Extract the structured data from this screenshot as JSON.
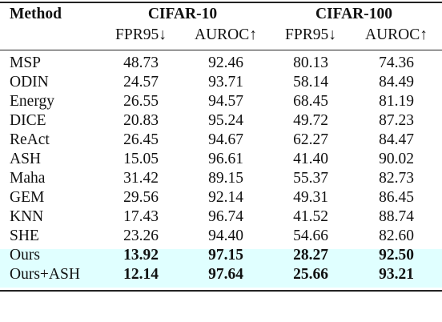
{
  "table": {
    "header": {
      "method": "Method",
      "groups": [
        "CIFAR-10",
        "CIFAR-100"
      ],
      "metrics": [
        "FPR95↓",
        "AUROC↑",
        "FPR95↓",
        "AUROC↑"
      ]
    },
    "rows": [
      {
        "method": "MSP",
        "values": [
          "48.73",
          "92.46",
          "80.13",
          "74.36"
        ]
      },
      {
        "method": "ODIN",
        "values": [
          "24.57",
          "93.71",
          "58.14",
          "84.49"
        ]
      },
      {
        "method": "Energy",
        "values": [
          "26.55",
          "94.57",
          "68.45",
          "81.19"
        ]
      },
      {
        "method": "DICE",
        "values": [
          "20.83",
          "95.24",
          "49.72",
          "87.23"
        ]
      },
      {
        "method": "ReAct",
        "values": [
          "26.45",
          "94.67",
          "62.27",
          "84.47"
        ]
      },
      {
        "method": "ASH",
        "values": [
          "15.05",
          "96.61",
          "41.40",
          "90.02"
        ]
      },
      {
        "method": "Maha",
        "values": [
          "31.42",
          "89.15",
          "55.37",
          "82.73"
        ]
      },
      {
        "method": "GEM",
        "values": [
          "29.56",
          "92.14",
          "49.31",
          "86.45"
        ]
      },
      {
        "method": "KNN",
        "values": [
          "17.43",
          "96.74",
          "41.52",
          "88.74"
        ]
      },
      {
        "method": "SHE",
        "values": [
          "23.26",
          "94.40",
          "54.66",
          "82.60"
        ]
      },
      {
        "method": "Ours",
        "values": [
          "13.92",
          "97.15",
          "28.27",
          "92.50"
        ]
      },
      {
        "method": "Ours+ASH",
        "values": [
          "12.14",
          "97.64",
          "25.66",
          "93.21"
        ]
      }
    ],
    "highlight_color": "#e0ffff"
  }
}
